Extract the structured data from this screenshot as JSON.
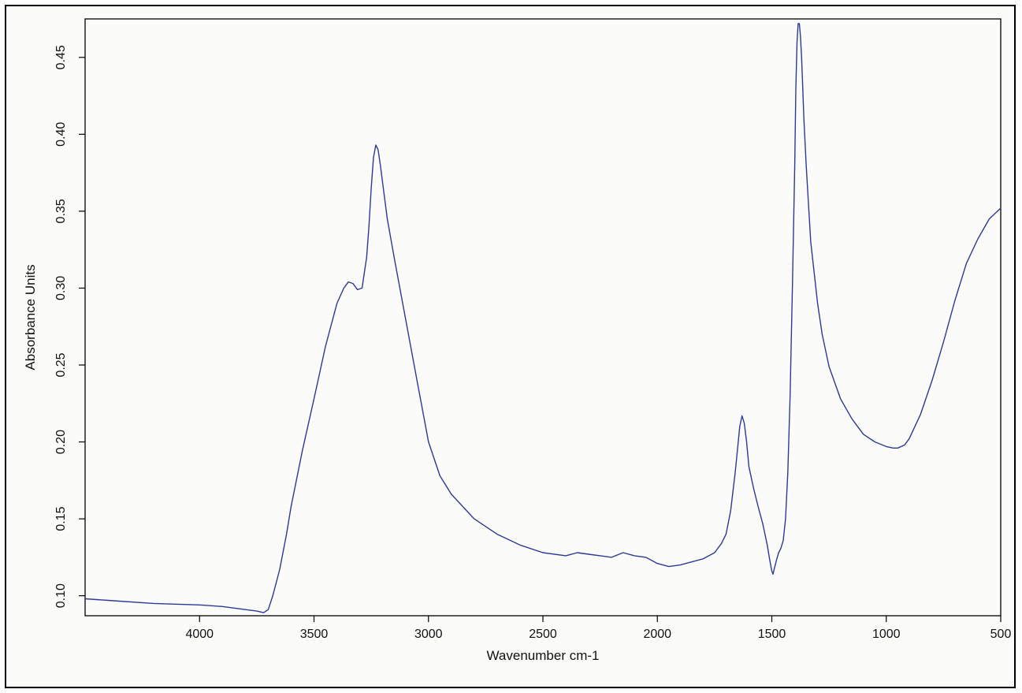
{
  "chart_data": {
    "type": "line",
    "title": "",
    "xlabel": "Wavenumber cm-1",
    "ylabel": "Absorbance Units",
    "xlim": [
      4500,
      500
    ],
    "ylim": [
      0.087,
      0.475
    ],
    "x_reversed": true,
    "xticks": [
      4000,
      3500,
      3000,
      2500,
      2000,
      1500,
      1000,
      500
    ],
    "xtick_labels": [
      "4000",
      "3500",
      "3000",
      "2500",
      "2000",
      "1500",
      "1000",
      "500"
    ],
    "yticks": [
      0.1,
      0.15,
      0.2,
      0.25,
      0.3,
      0.35,
      0.4,
      0.45
    ],
    "ytick_labels": [
      "0.10",
      "0.15",
      "0.20",
      "0.25",
      "0.30",
      "0.35",
      "0.40",
      "0.45"
    ],
    "grid": false,
    "line_color": "#2b3a9a",
    "series": [
      {
        "x": [
          4500,
          4400,
          4200,
          4000,
          3900,
          3800,
          3750,
          3720,
          3700,
          3680,
          3650,
          3620,
          3600,
          3550,
          3500,
          3450,
          3400,
          3370,
          3350,
          3330,
          3310,
          3290,
          3270,
          3260,
          3250,
          3240,
          3230,
          3220,
          3210,
          3200,
          3180,
          3150,
          3100,
          3050,
          3000,
          2950,
          2900,
          2800,
          2700,
          2600,
          2500,
          2400,
          2350,
          2300,
          2250,
          2200,
          2150,
          2100,
          2050,
          2000,
          1950,
          1900,
          1850,
          1800,
          1750,
          1720,
          1700,
          1680,
          1660,
          1650,
          1640,
          1630,
          1620,
          1610,
          1600,
          1580,
          1560,
          1540,
          1520,
          1510,
          1500,
          1495,
          1490,
          1480,
          1470,
          1460,
          1450,
          1440,
          1430,
          1420,
          1410,
          1400,
          1395,
          1390,
          1385,
          1380,
          1375,
          1370,
          1360,
          1350,
          1330,
          1300,
          1280,
          1250,
          1200,
          1150,
          1100,
          1050,
          1000,
          970,
          950,
          920,
          900,
          850,
          800,
          750,
          700,
          650,
          600,
          550,
          500
        ],
        "y": [
          0.098,
          0.097,
          0.095,
          0.094,
          0.093,
          0.091,
          0.09,
          0.089,
          0.091,
          0.1,
          0.117,
          0.14,
          0.158,
          0.195,
          0.228,
          0.262,
          0.29,
          0.3,
          0.304,
          0.303,
          0.299,
          0.3,
          0.32,
          0.34,
          0.365,
          0.385,
          0.393,
          0.39,
          0.38,
          0.368,
          0.345,
          0.32,
          0.28,
          0.24,
          0.2,
          0.178,
          0.166,
          0.15,
          0.14,
          0.133,
          0.128,
          0.126,
          0.128,
          0.127,
          0.126,
          0.125,
          0.128,
          0.126,
          0.125,
          0.121,
          0.119,
          0.12,
          0.122,
          0.124,
          0.128,
          0.134,
          0.14,
          0.155,
          0.18,
          0.195,
          0.21,
          0.217,
          0.212,
          0.2,
          0.184,
          0.17,
          0.158,
          0.147,
          0.133,
          0.124,
          0.116,
          0.114,
          0.117,
          0.123,
          0.128,
          0.131,
          0.136,
          0.15,
          0.18,
          0.23,
          0.3,
          0.38,
          0.43,
          0.46,
          0.472,
          0.472,
          0.464,
          0.45,
          0.41,
          0.38,
          0.33,
          0.29,
          0.27,
          0.249,
          0.228,
          0.215,
          0.205,
          0.2,
          0.197,
          0.196,
          0.196,
          0.198,
          0.202,
          0.218,
          0.24,
          0.265,
          0.292,
          0.316,
          0.332,
          0.345,
          0.352
        ]
      }
    ]
  }
}
